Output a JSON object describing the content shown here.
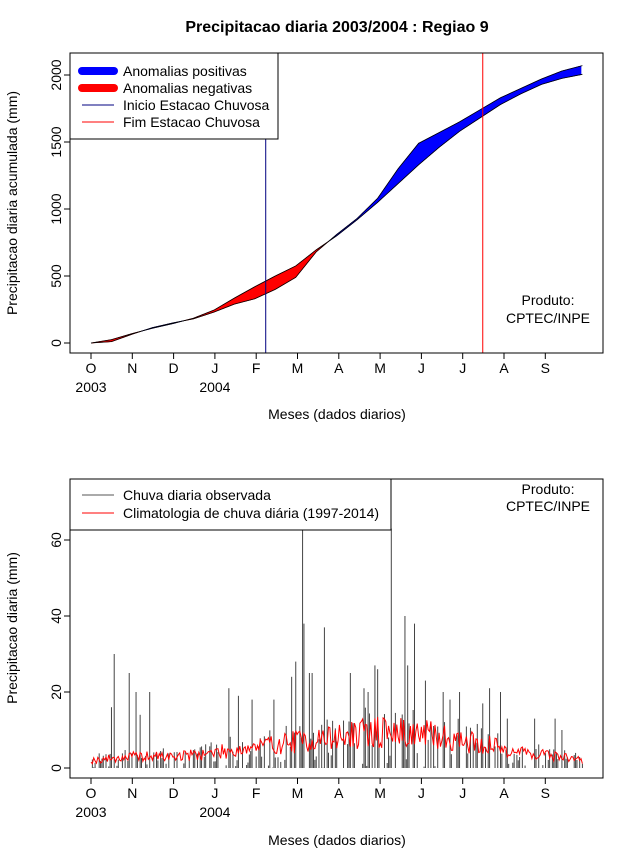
{
  "chart_data": [
    {
      "type": "area",
      "title": "Precipitacao diaria 2003/2004 : Regiao 9",
      "xlabel": "Meses (dados diarios)",
      "ylabel": "Precipitacao diaria acumulada (mm)",
      "ylim": [
        0,
        2050
      ],
      "yticks": [
        0,
        500,
        1000,
        1500,
        2000
      ],
      "month_ticks": [
        "O",
        "N",
        "D",
        "J",
        "F",
        "M",
        "A",
        "M",
        "J",
        "J",
        "A",
        "S"
      ],
      "year_labels": [
        {
          "month_index": 0,
          "label": "2003"
        },
        {
          "month_index": 3,
          "label": "2004"
        }
      ],
      "legend": [
        {
          "label": "Anomalias positivas",
          "color": "#0000ff",
          "style": "thick"
        },
        {
          "label": "Anomalias negativas",
          "color": "#ff0000",
          "style": "thick"
        },
        {
          "label": "Inicio Estacao Chuvosa",
          "color": "#000080",
          "style": "thin"
        },
        {
          "label": "Fim Estacao Chuvosa",
          "color": "#ff0000",
          "style": "thin"
        }
      ],
      "product_label_1": "Produto:",
      "product_label_2": "CPTEC/INPE",
      "rainy_season_start_day": 128,
      "rainy_season_end_day": 287,
      "days": [
        0,
        15,
        30,
        45,
        60,
        75,
        90,
        105,
        120,
        135,
        150,
        165,
        180,
        195,
        210,
        225,
        240,
        255,
        270,
        285,
        300,
        315,
        330,
        345,
        360
      ],
      "observed": [
        0,
        10,
        65,
        115,
        150,
        180,
        230,
        290,
        330,
        400,
        490,
        680,
        810,
        930,
        1080,
        1300,
        1490,
        1570,
        1650,
        1740,
        1830,
        1900,
        1970,
        2030,
        2070
      ],
      "climatology": [
        0,
        25,
        70,
        110,
        145,
        185,
        245,
        335,
        420,
        500,
        575,
        695,
        800,
        920,
        1050,
        1190,
        1330,
        1460,
        1580,
        1680,
        1780,
        1860,
        1930,
        1975,
        2005
      ],
      "colors": {
        "positive": "#0000ff",
        "negative": "#ff0000"
      }
    },
    {
      "type": "bar",
      "xlabel": "Meses (dados diarios)",
      "ylabel": "Precipitacao diaria (mm)",
      "ylim": [
        0,
        72
      ],
      "yticks": [
        0,
        20,
        40,
        60
      ],
      "month_ticks": [
        "O",
        "N",
        "D",
        "J",
        "F",
        "M",
        "A",
        "M",
        "J",
        "J",
        "A",
        "S"
      ],
      "year_labels": [
        {
          "month_index": 0,
          "label": "2003"
        },
        {
          "month_index": 3,
          "label": "2004"
        }
      ],
      "legend": [
        {
          "label": "Chuva diaria observada",
          "color": "#555555"
        },
        {
          "label": "Climatologia de chuva diária (1997-2014)",
          "color": "#ff0000"
        }
      ],
      "product_label_1": "Produto:",
      "product_label_2": "CPTEC/INPE",
      "peaks": [
        {
          "day": 15,
          "value": 16
        },
        {
          "day": 17,
          "value": 30
        },
        {
          "day": 28,
          "value": 25
        },
        {
          "day": 33,
          "value": 20
        },
        {
          "day": 36,
          "value": 14
        },
        {
          "day": 43,
          "value": 20
        },
        {
          "day": 101,
          "value": 21
        },
        {
          "day": 108,
          "value": 19
        },
        {
          "day": 118,
          "value": 18
        },
        {
          "day": 134,
          "value": 18
        },
        {
          "day": 147,
          "value": 24
        },
        {
          "day": 150,
          "value": 28
        },
        {
          "day": 155,
          "value": 63
        },
        {
          "day": 156,
          "value": 38
        },
        {
          "day": 160,
          "value": 25
        },
        {
          "day": 162,
          "value": 25
        },
        {
          "day": 171,
          "value": 37
        },
        {
          "day": 190,
          "value": 25
        },
        {
          "day": 200,
          "value": 21
        },
        {
          "day": 203,
          "value": 20
        },
        {
          "day": 208,
          "value": 27
        },
        {
          "day": 210,
          "value": 26
        },
        {
          "day": 220,
          "value": 63
        },
        {
          "day": 230,
          "value": 40
        },
        {
          "day": 232,
          "value": 27
        },
        {
          "day": 237,
          "value": 38
        },
        {
          "day": 245,
          "value": 23
        },
        {
          "day": 258,
          "value": 20
        },
        {
          "day": 263,
          "value": 18
        },
        {
          "day": 270,
          "value": 20
        },
        {
          "day": 287,
          "value": 17
        },
        {
          "day": 292,
          "value": 21
        },
        {
          "day": 300,
          "value": 20
        },
        {
          "day": 305,
          "value": 13
        },
        {
          "day": 325,
          "value": 13
        },
        {
          "day": 340,
          "value": 13
        },
        {
          "day": 345,
          "value": 10
        }
      ],
      "climatology_base": [
        {
          "day": 0,
          "value": 2
        },
        {
          "day": 30,
          "value": 3
        },
        {
          "day": 60,
          "value": 3
        },
        {
          "day": 90,
          "value": 4
        },
        {
          "day": 120,
          "value": 5.5
        },
        {
          "day": 150,
          "value": 7
        },
        {
          "day": 180,
          "value": 8
        },
        {
          "day": 210,
          "value": 9.5
        },
        {
          "day": 240,
          "value": 9
        },
        {
          "day": 260,
          "value": 8
        },
        {
          "day": 290,
          "value": 6
        },
        {
          "day": 320,
          "value": 4
        },
        {
          "day": 345,
          "value": 3
        },
        {
          "day": 360,
          "value": 2
        }
      ]
    }
  ]
}
